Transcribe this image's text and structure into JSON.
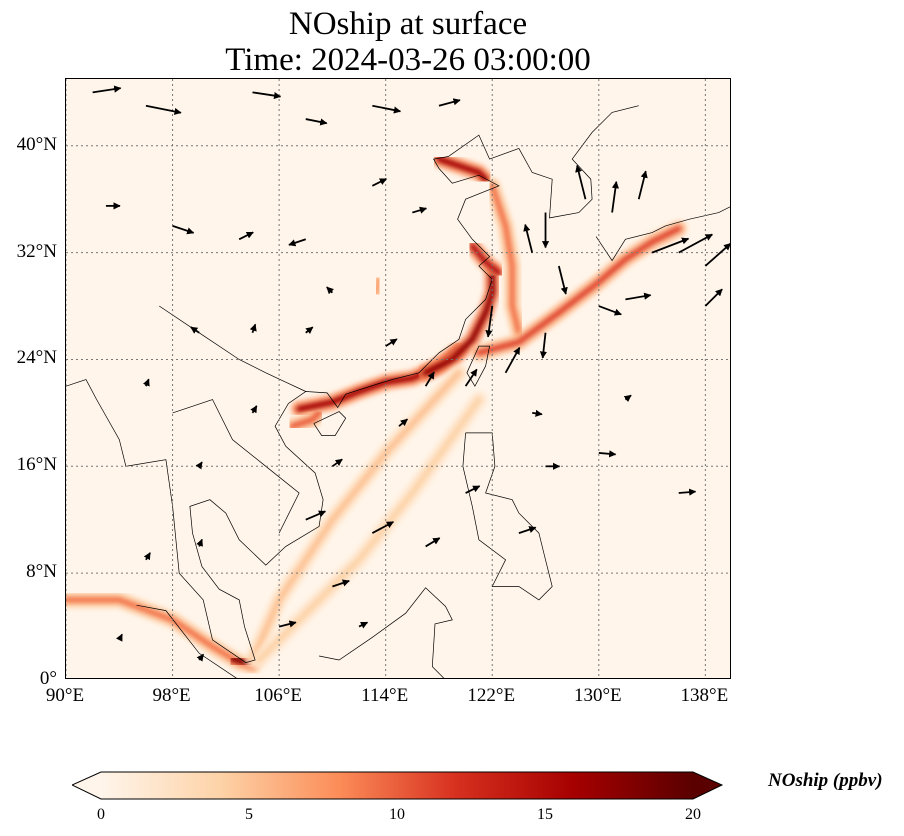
{
  "title": {
    "line1": "NOship at surface",
    "line2": "Time: 2024-03-26 03:00:00"
  },
  "chart_data": {
    "type": "map",
    "variable": "NOship",
    "units": "ppbv",
    "lon_range": [
      90,
      140
    ],
    "lat_range": [
      0,
      45
    ],
    "lat_ticks": [
      {
        "v": 40,
        "label": "40°N"
      },
      {
        "v": 32,
        "label": "32°N"
      },
      {
        "v": 24,
        "label": "24°N"
      },
      {
        "v": 16,
        "label": "16°N"
      },
      {
        "v": 8,
        "label": "8°N"
      },
      {
        "v": 0,
        "label": "0°"
      }
    ],
    "lon_ticks": [
      {
        "v": 90,
        "label": "90°E"
      },
      {
        "v": 98,
        "label": "98°E"
      },
      {
        "v": 106,
        "label": "106°E"
      },
      {
        "v": 114,
        "label": "114°E"
      },
      {
        "v": 122,
        "label": "122°E"
      },
      {
        "v": 130,
        "label": "130°E"
      },
      {
        "v": 138,
        "label": "138°E"
      }
    ],
    "gridlines": true,
    "colorbar": {
      "label": "NOship (ppbv)",
      "min": 0,
      "max": 20,
      "ticks": [
        0,
        5,
        10,
        15,
        20
      ],
      "colormap": [
        "#fff5eb",
        "#fdd3a8",
        "#fc8d59",
        "#d7301f",
        "#a50000",
        "#5a0000"
      ],
      "extend": "both"
    },
    "plumes": [
      {
        "name": "malacca",
        "value": 9,
        "points": [
          [
            90,
            6
          ],
          [
            94,
            6
          ],
          [
            98,
            4.5
          ],
          [
            101,
            2.5
          ],
          [
            103,
            1.3
          ],
          [
            104,
            1
          ]
        ]
      },
      {
        "name": "singapore-hotspot",
        "value": 18,
        "points": [
          [
            102.5,
            1.6
          ],
          [
            103.8,
            1.2
          ]
        ]
      },
      {
        "name": "south-china-coast",
        "value": 16,
        "points": [
          [
            107.5,
            20.3
          ],
          [
            110,
            20.8
          ],
          [
            112,
            21.6
          ],
          [
            114,
            22.3
          ],
          [
            116,
            22.6
          ],
          [
            118,
            23.5
          ],
          [
            119.5,
            24.8
          ]
        ]
      },
      {
        "name": "taiwan-strait",
        "value": 17,
        "points": [
          [
            117,
            23
          ],
          [
            119,
            24
          ],
          [
            120.5,
            25.5
          ],
          [
            121.5,
            27.5
          ],
          [
            122,
            29
          ],
          [
            122,
            30.5
          ]
        ]
      },
      {
        "name": "yangtze",
        "value": 15,
        "points": [
          [
            120.5,
            32.5
          ],
          [
            121.5,
            31.3
          ],
          [
            122.5,
            30.5
          ]
        ]
      },
      {
        "name": "bohai",
        "value": 16,
        "points": [
          [
            118,
            39
          ],
          [
            119.5,
            38.5
          ],
          [
            121,
            38
          ],
          [
            121.5,
            37.5
          ]
        ]
      },
      {
        "name": "yellow-sea",
        "value": 9,
        "points": [
          [
            122,
            37
          ],
          [
            123,
            34
          ],
          [
            123.5,
            31
          ],
          [
            123.5,
            28
          ],
          [
            124,
            26
          ]
        ]
      },
      {
        "name": "east-china-sea",
        "value": 11,
        "points": [
          [
            121,
            24.5
          ],
          [
            124,
            25.3
          ],
          [
            127,
            27.5
          ],
          [
            130,
            29.8
          ],
          [
            132,
            31.5
          ],
          [
            134,
            32.8
          ],
          [
            136,
            33.8
          ]
        ]
      },
      {
        "name": "sw-lane",
        "value": 5,
        "points": [
          [
            119.5,
            23
          ],
          [
            114,
            17
          ],
          [
            110,
            12
          ],
          [
            106,
            6
          ],
          [
            104,
            1.5
          ]
        ]
      },
      {
        "name": "sw-lane-2",
        "value": 4,
        "points": [
          [
            121,
            21
          ],
          [
            116,
            14
          ],
          [
            112,
            9
          ],
          [
            108,
            5
          ],
          [
            104.5,
            1.5
          ]
        ]
      },
      {
        "name": "gulf-tonkin",
        "value": 10,
        "points": [
          [
            107,
            19
          ],
          [
            108.5,
            19.5
          ],
          [
            109,
            20
          ]
        ]
      },
      {
        "name": "inland",
        "value": 7,
        "points": [
          [
            113.3,
            29
          ],
          [
            113.5,
            30
          ]
        ]
      }
    ],
    "wind_vectors": [
      [
        92,
        44,
        2,
        0.3
      ],
      [
        96,
        43,
        2.5,
        -0.5
      ],
      [
        104,
        44,
        2,
        -0.3
      ],
      [
        108,
        42,
        1.5,
        -0.3
      ],
      [
        113,
        43,
        2,
        -0.4
      ],
      [
        118,
        43,
        1.5,
        0.4
      ],
      [
        93,
        35.5,
        1,
        0
      ],
      [
        98,
        34,
        1.5,
        -0.5
      ],
      [
        103,
        33,
        1,
        0.5
      ],
      [
        108,
        33,
        -1.2,
        -0.4
      ],
      [
        113,
        37,
        1,
        0.5
      ],
      [
        116,
        35,
        1,
        0.3
      ],
      [
        126,
        35,
        0,
        -2.5
      ],
      [
        127,
        31,
        0.5,
        -2
      ],
      [
        125,
        32,
        -0.5,
        2
      ],
      [
        129,
        36,
        -0.6,
        2.4
      ],
      [
        131,
        35,
        0.3,
        2.2
      ],
      [
        133,
        36,
        0.5,
        2
      ],
      [
        134,
        32,
        2.6,
        1
      ],
      [
        136,
        32,
        2.4,
        1.3
      ],
      [
        138,
        31,
        1.8,
        1.6
      ],
      [
        138,
        28,
        1.2,
        1.2
      ],
      [
        130,
        28,
        1.6,
        -0.6
      ],
      [
        132,
        28.5,
        1.8,
        0.3
      ],
      [
        126,
        26,
        -0.2,
        -1.8
      ],
      [
        122,
        28,
        -0.3,
        -2.2
      ],
      [
        123,
        23,
        1,
        1.8
      ],
      [
        120,
        22,
        0.8,
        1.2
      ],
      [
        117,
        22,
        0.6,
        1
      ],
      [
        126,
        16,
        1,
        0
      ],
      [
        130,
        17,
        1.2,
        -0.1
      ],
      [
        136,
        14,
        1.2,
        0.1
      ],
      [
        124,
        11,
        1.2,
        0.4
      ],
      [
        120,
        14,
        1,
        0.5
      ],
      [
        113,
        11,
        1.5,
        0.8
      ],
      [
        117,
        10,
        1,
        0.6
      ],
      [
        108,
        12,
        1.4,
        0.6
      ],
      [
        110,
        7,
        1.2,
        0.4
      ],
      [
        100,
        10,
        0.2,
        0.5
      ],
      [
        96,
        9,
        0.3,
        0.5
      ],
      [
        106,
        4,
        1.2,
        0.3
      ],
      [
        112,
        4,
        0.6,
        0.3
      ],
      [
        100,
        1.5,
        0.3,
        0.4
      ],
      [
        94,
        3,
        0.2,
        0.4
      ],
      [
        100,
        26,
        -0.6,
        0.4
      ],
      [
        104,
        26,
        0.2,
        0.6
      ],
      [
        108,
        26,
        0.5,
        0.4
      ],
      [
        114,
        25,
        0.8,
        0.5
      ],
      [
        110,
        29,
        -0.4,
        0.4
      ],
      [
        96,
        22,
        0.2,
        0.5
      ],
      [
        104,
        20,
        0.3,
        0.5
      ],
      [
        110,
        16,
        0.7,
        0.5
      ],
      [
        115,
        19,
        0.6,
        0.5
      ],
      [
        100,
        16,
        0.2,
        0.3
      ],
      [
        125,
        20,
        0.7,
        -0.1
      ],
      [
        132,
        21,
        0.4,
        0.3
      ]
    ]
  }
}
